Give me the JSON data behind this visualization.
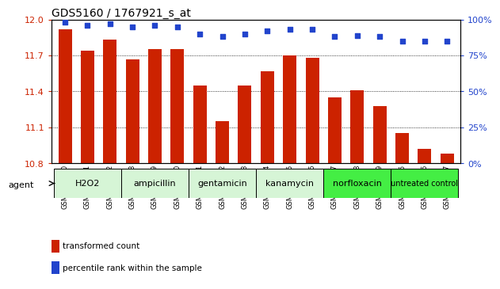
{
  "title": "GDS5160 / 1767921_s_at",
  "samples": [
    "GSM1356340",
    "GSM1356341",
    "GSM1356342",
    "GSM1356328",
    "GSM1356329",
    "GSM1356330",
    "GSM1356331",
    "GSM1356332",
    "GSM1356333",
    "GSM1356334",
    "GSM1356335",
    "GSM1356336",
    "GSM1356337",
    "GSM1356338",
    "GSM1356339",
    "GSM1356325",
    "GSM1356326",
    "GSM1356327"
  ],
  "bar_values": [
    11.92,
    11.74,
    11.83,
    11.67,
    11.75,
    11.75,
    11.45,
    11.15,
    11.45,
    11.57,
    11.7,
    11.68,
    11.35,
    11.41,
    11.28,
    11.05,
    10.92,
    10.88
  ],
  "percentile_values": [
    98,
    96,
    97,
    95,
    96,
    95,
    90,
    88,
    90,
    92,
    93,
    93,
    88,
    89,
    88,
    85,
    85,
    85
  ],
  "groups": [
    {
      "label": "H2O2",
      "start": 0,
      "end": 3,
      "color": "#d6f5d6"
    },
    {
      "label": "ampicillin",
      "start": 3,
      "end": 6,
      "color": "#d6f5d6"
    },
    {
      "label": "gentamicin",
      "start": 6,
      "end": 9,
      "color": "#d6f5d6"
    },
    {
      "label": "kanamycin",
      "start": 9,
      "end": 12,
      "color": "#d6f5d6"
    },
    {
      "label": "norfloxacin",
      "start": 12,
      "end": 15,
      "color": "#44ee44"
    },
    {
      "label": "untreated control",
      "start": 15,
      "end": 18,
      "color": "#44ee44"
    }
  ],
  "bar_color": "#cc2200",
  "dot_color": "#2244cc",
  "ylim_left": [
    10.8,
    12.0
  ],
  "ybase": 10.8,
  "yticks_left": [
    10.8,
    11.1,
    11.4,
    11.7,
    12.0
  ],
  "ylim_right": [
    0,
    100
  ],
  "yticks_right": [
    0,
    25,
    50,
    75,
    100
  ],
  "yticklabels_right": [
    "0%",
    "25%",
    "50%",
    "75%",
    "100%"
  ],
  "bar_width": 0.6,
  "legend_items": [
    {
      "label": "transformed count",
      "color": "#cc2200"
    },
    {
      "label": "percentile rank within the sample",
      "color": "#2244cc"
    }
  ]
}
